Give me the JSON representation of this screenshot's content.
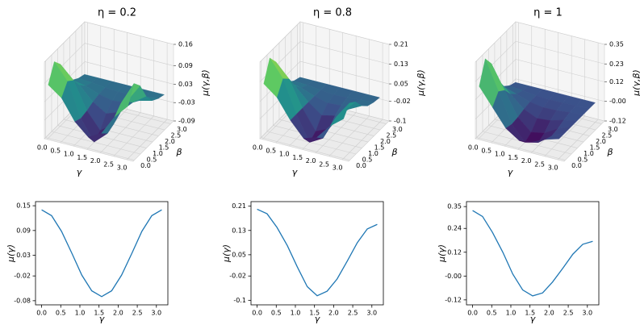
{
  "chart_data": [
    {
      "type": "surface",
      "title": "η = 0.2",
      "xlabel": "γ",
      "ylabel": "β",
      "zlabel": "μ(γ,β)",
      "colormap": "viridis",
      "x": [
        0,
        0.5,
        1,
        1.5,
        2,
        2.5,
        3
      ],
      "y": [
        0,
        0.5,
        1,
        1.5,
        2,
        2.5,
        3
      ],
      "z": [
        [
          0.084,
          0.052,
          -0.014,
          -0.053,
          -0.03,
          0.035,
          0.081
        ],
        [
          0.14,
          0.087,
          -0.023,
          -0.089,
          -0.05,
          0.058,
          0.135
        ],
        [
          0.112,
          0.07,
          -0.018,
          -0.071,
          -0.04,
          0.046,
          0.108
        ],
        [
          0.056,
          0.035,
          -0.009,
          -0.036,
          -0.02,
          0.023,
          0.054
        ],
        [
          0.021,
          0.013,
          -0.003,
          -0.013,
          -0.008,
          0.009,
          0.02
        ],
        [
          0.007,
          0.004,
          -0.001,
          -0.004,
          -0.003,
          0.003,
          0.007
        ],
        [
          0,
          0,
          0,
          0,
          0,
          0,
          0
        ]
      ],
      "xlim": [
        -0.1,
        3.24
      ],
      "ylim": [
        -0.1,
        3.24
      ],
      "zlim": [
        -0.09,
        0.16
      ],
      "xticks": [
        {
          "value": 0,
          "label": "0.0"
        },
        0.5,
        {
          "value": 1,
          "label": "1.0"
        },
        1.5,
        {
          "value": 2,
          "label": "2.0"
        },
        2.5,
        {
          "value": 3,
          "label": "3.0"
        }
      ],
      "yticks": [
        {
          "value": 0,
          "label": "0.0"
        },
        0.5,
        {
          "value": 1,
          "label": "1.0"
        },
        1.5,
        {
          "value": 2,
          "label": "2.0"
        },
        2.5,
        {
          "value": 3,
          "label": "3.0"
        }
      ],
      "zticks": [
        -0.09,
        -0.03,
        0.03,
        0.09,
        0.16
      ]
    },
    {
      "type": "surface",
      "title": "η = 0.8",
      "xlabel": "γ",
      "ylabel": "β",
      "zlabel": "μ(γ,β)",
      "colormap": "viridis",
      "x": [
        0,
        0.5,
        1,
        1.5,
        2,
        2.5,
        3
      ],
      "y": [
        0,
        0.5,
        1,
        1.5,
        2,
        2.5,
        3
      ],
      "z": [
        [
          0.12,
          0.078,
          0,
          -0.06,
          -0.042,
          0.018,
          0.06
        ],
        [
          0.2,
          0.13,
          0,
          -0.1,
          -0.07,
          0.03,
          0.1
        ],
        [
          0.16,
          0.104,
          0,
          -0.08,
          -0.056,
          0.024,
          0.08
        ],
        [
          0.08,
          0.052,
          0,
          -0.04,
          -0.028,
          0.012,
          0.04
        ],
        [
          0.03,
          0.02,
          0,
          -0.015,
          -0.011,
          0.005,
          0.015
        ],
        [
          0.01,
          0.007,
          0,
          -0.005,
          -0.004,
          0.002,
          0.005
        ],
        [
          0,
          0,
          0,
          0,
          0,
          0,
          0
        ]
      ],
      "xlim": [
        -0.1,
        3.24
      ],
      "ylim": [
        -0.1,
        3.24
      ],
      "zlim": [
        -0.1,
        0.21
      ],
      "xticks": [
        {
          "value": 0,
          "label": "0.0"
        },
        0.5,
        {
          "value": 1,
          "label": "1.0"
        },
        1.5,
        {
          "value": 2,
          "label": "2.0"
        },
        2.5,
        {
          "value": 3,
          "label": "3.0"
        }
      ],
      "yticks": [
        {
          "value": 0,
          "label": "0.0"
        },
        0.5,
        {
          "value": 1,
          "label": "1.0"
        },
        1.5,
        {
          "value": 2,
          "label": "2.0"
        },
        2.5,
        {
          "value": 3,
          "label": "3.0"
        }
      ],
      "zticks": [
        -0.1,
        -0.02,
        0.05,
        0.13,
        0.21
      ]
    },
    {
      "type": "surface",
      "title": "η = 1",
      "xlabel": "γ",
      "ylabel": "β",
      "zlabel": "μ(γ,β)",
      "colormap": "viridis",
      "x": [
        0,
        0.5,
        1,
        1.5,
        2,
        2.5,
        3
      ],
      "y": [
        0,
        0.5,
        1,
        1.5,
        2,
        2.5,
        3
      ],
      "z": [
        [
          0.198,
          0.09,
          -0.018,
          -0.072,
          -0.06,
          -0.024,
          0
        ],
        [
          0.33,
          0.15,
          -0.03,
          -0.12,
          -0.1,
          -0.04,
          0
        ],
        [
          0.264,
          0.12,
          -0.024,
          -0.096,
          -0.08,
          -0.032,
          0
        ],
        [
          0.132,
          0.06,
          -0.012,
          -0.048,
          -0.04,
          -0.016,
          0
        ],
        [
          0.05,
          0.023,
          -0.005,
          -0.018,
          -0.015,
          -0.006,
          0
        ],
        [
          0.017,
          0.008,
          -0.002,
          -0.006,
          -0.005,
          -0.002,
          0
        ],
        [
          0,
          0,
          0,
          0,
          0,
          0,
          0
        ]
      ],
      "xlim": [
        -0.1,
        3.24
      ],
      "ylim": [
        -0.1,
        3.24
      ],
      "zlim": [
        -0.12,
        0.35
      ],
      "xticks": [
        {
          "value": 0,
          "label": "0.0"
        },
        0.5,
        {
          "value": 1,
          "label": "1.0"
        },
        1.5,
        {
          "value": 2,
          "label": "2.0"
        },
        2.5,
        {
          "value": 3,
          "label": "3.0"
        }
      ],
      "yticks": [
        {
          "value": 0,
          "label": "0.0"
        },
        0.5,
        {
          "value": 1,
          "label": "1.0"
        },
        1.5,
        {
          "value": 2,
          "label": "2.0"
        },
        2.5,
        {
          "value": 3,
          "label": "3.0"
        }
      ],
      "zticks": [
        -0.12,
        {
          "value": 0,
          "label": "-0.00"
        },
        0.12,
        0.23,
        0.35
      ]
    },
    {
      "type": "line",
      "xlabel": "γ",
      "ylabel": "μ(γ)",
      "color": "#1f77b4",
      "x": [
        0,
        0.26,
        0.52,
        0.79,
        1.05,
        1.31,
        1.57,
        1.83,
        2.09,
        2.36,
        2.62,
        2.88,
        3.14
      ],
      "values": [
        0.14,
        0.126,
        0.088,
        0.035,
        -0.018,
        -0.056,
        -0.07,
        -0.056,
        -0.018,
        0.035,
        0.088,
        0.126,
        0.14
      ],
      "xlim": [
        -0.16,
        3.3
      ],
      "ylim": [
        -0.09,
        0.16
      ],
      "xticks": [
        {
          "value": 0,
          "label": "0.0"
        },
        0.5,
        {
          "value": 1,
          "label": "1.0"
        },
        1.5,
        {
          "value": 2,
          "label": "2.0"
        },
        2.5,
        {
          "value": 3,
          "label": "3.0"
        }
      ],
      "yticks": [
        -0.08,
        -0.02,
        0.03,
        0.09,
        0.15
      ]
    },
    {
      "type": "line",
      "xlabel": "γ",
      "ylabel": "μ(γ)",
      "color": "#1f77b4",
      "x": [
        0,
        0.26,
        0.52,
        0.79,
        1.05,
        1.31,
        1.57,
        1.83,
        2.09,
        2.36,
        2.62,
        2.88,
        3.14
      ],
      "values": [
        0.2,
        0.185,
        0.14,
        0.08,
        0.01,
        -0.055,
        -0.085,
        -0.07,
        -0.03,
        0.03,
        0.09,
        0.135,
        0.15
      ],
      "xlim": [
        -0.16,
        3.3
      ],
      "ylim": [
        -0.115,
        0.225
      ],
      "xticks": [
        {
          "value": 0,
          "label": "0.0"
        },
        0.5,
        {
          "value": 1,
          "label": "1.0"
        },
        1.5,
        {
          "value": 2,
          "label": "2.0"
        },
        2.5,
        {
          "value": 3,
          "label": "3.0"
        }
      ],
      "yticks": [
        -0.1,
        -0.02,
        0.05,
        0.13,
        0.21
      ]
    },
    {
      "type": "line",
      "xlabel": "γ",
      "ylabel": "μ(γ)",
      "color": "#1f77b4",
      "x": [
        0,
        0.26,
        0.52,
        0.79,
        1.05,
        1.31,
        1.57,
        1.83,
        2.09,
        2.36,
        2.62,
        2.88,
        3.14
      ],
      "values": [
        0.33,
        0.3,
        0.22,
        0.12,
        0.01,
        -0.07,
        -0.1,
        -0.085,
        -0.03,
        0.04,
        0.11,
        0.16,
        0.175
      ],
      "xlim": [
        -0.16,
        3.3
      ],
      "ylim": [
        -0.145,
        0.375
      ],
      "xticks": [
        {
          "value": 0,
          "label": "0.0"
        },
        0.5,
        {
          "value": 1,
          "label": "1.0"
        },
        1.5,
        {
          "value": 2,
          "label": "2.0"
        },
        2.5,
        {
          "value": 3,
          "label": "3.0"
        }
      ],
      "yticks": [
        -0.12,
        {
          "value": 0,
          "label": "-0.00"
        },
        0.12,
        0.24,
        0.35
      ]
    }
  ]
}
